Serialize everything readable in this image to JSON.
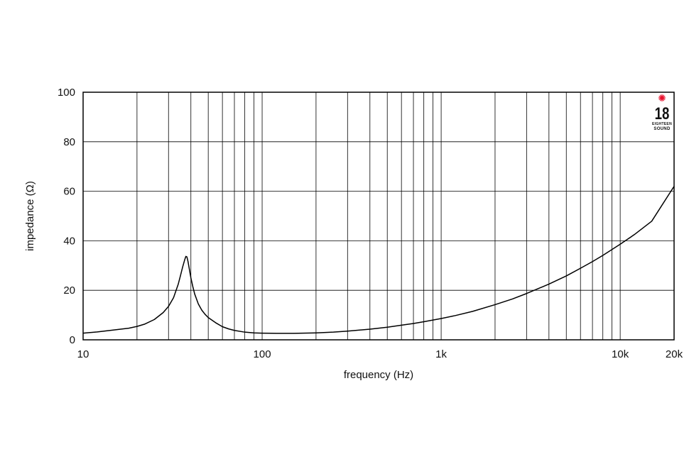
{
  "chart_data": {
    "type": "line",
    "xscale": "log",
    "xlabel": "frequency (Hz)",
    "ylabel": "impedance (Ω)",
    "xlim": [
      10,
      20000
    ],
    "ylim": [
      0,
      100
    ],
    "x_ticks": [
      {
        "value": 10,
        "label": "10"
      },
      {
        "value": 100,
        "label": "100"
      },
      {
        "value": 1000,
        "label": "1k"
      },
      {
        "value": 10000,
        "label": "10k"
      },
      {
        "value": 20000,
        "label": "20k"
      }
    ],
    "y_ticks": [
      {
        "value": 0,
        "label": "0"
      },
      {
        "value": 20,
        "label": "20"
      },
      {
        "value": 40,
        "label": "40"
      },
      {
        "value": 60,
        "label": "60"
      },
      {
        "value": 80,
        "label": "80"
      },
      {
        "value": 100,
        "label": "100"
      }
    ],
    "x_gridlines": [
      20,
      30,
      40,
      50,
      60,
      70,
      80,
      90,
      100,
      200,
      300,
      400,
      500,
      600,
      700,
      800,
      900,
      1000,
      2000,
      3000,
      4000,
      5000,
      6000,
      7000,
      8000,
      9000,
      10000
    ],
    "y_gridlines": [
      20,
      40,
      60,
      80
    ],
    "grid": true,
    "series": [
      {
        "color": "#000000",
        "x": [
          10,
          12,
          15,
          18,
          20,
          22,
          25,
          28,
          30,
          32,
          34,
          35,
          36,
          37,
          37.5,
          38,
          38.5,
          39,
          40,
          41,
          42,
          44,
          46,
          48,
          50,
          55,
          60,
          65,
          70,
          80,
          90,
          100,
          120,
          150,
          200,
          250,
          300,
          400,
          500,
          600,
          700,
          800,
          1000,
          1200,
          1500,
          2000,
          2500,
          3000,
          4000,
          5000,
          6000,
          7000,
          8000,
          10000,
          12000,
          15000,
          20000
        ],
        "y": [
          2.7,
          3.2,
          4.0,
          4.7,
          5.4,
          6.3,
          8.2,
          11.0,
          13.5,
          17.0,
          22.5,
          26.0,
          29.5,
          32.5,
          33.7,
          33.5,
          31.8,
          29.5,
          25.0,
          21.5,
          18.5,
          14.5,
          12.0,
          10.3,
          9.0,
          6.9,
          5.3,
          4.4,
          3.8,
          3.1,
          2.8,
          2.7,
          2.6,
          2.6,
          2.8,
          3.1,
          3.5,
          4.3,
          5.1,
          5.9,
          6.6,
          7.3,
          8.6,
          9.8,
          11.5,
          14.2,
          16.5,
          18.7,
          22.5,
          25.8,
          28.9,
          31.6,
          34.1,
          38.6,
          42.5,
          47.9,
          62.0
        ]
      }
    ]
  },
  "logo": {
    "number": "18",
    "line1": "EIGHTEEN",
    "line2": "SOUND",
    "accent_color": "#e8112d"
  }
}
